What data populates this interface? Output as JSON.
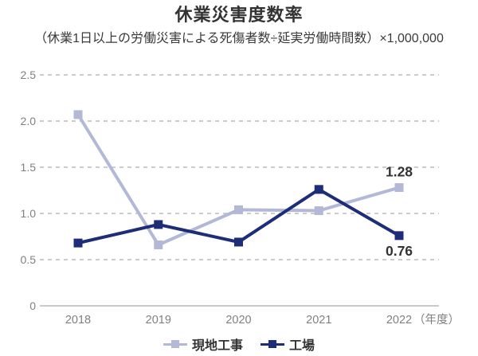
{
  "chart_data": {
    "type": "line",
    "title": "休業災害度数率",
    "subtitle": "（休業1日以上の労働災害による死傷者数÷延実労働時間数）×1,000,000",
    "categories": [
      "2018",
      "2019",
      "2020",
      "2021",
      "2022"
    ],
    "x_axis_unit": "（年度）",
    "xlabel": "",
    "ylabel": "",
    "ylim": [
      0,
      2.5
    ],
    "y_ticks": [
      "2.5",
      "2.0",
      "1.5",
      "1.0",
      "0.5",
      "0"
    ],
    "grid": "horizontal-dashed",
    "legend_position": "bottom",
    "series": [
      {
        "name": "現地工事",
        "color": "#b2b8d6",
        "values": [
          2.07,
          0.66,
          1.04,
          1.03,
          1.28
        ],
        "last_value_label": "1.28",
        "label_position": "above"
      },
      {
        "name": "工場",
        "color": "#1e2d78",
        "values": [
          0.68,
          0.88,
          0.69,
          1.26,
          0.76
        ],
        "last_value_label": "0.76",
        "label_position": "below"
      }
    ]
  },
  "colors": {
    "title_text": "#333333",
    "tick_text": "#808080",
    "grid": "#cccccc"
  }
}
